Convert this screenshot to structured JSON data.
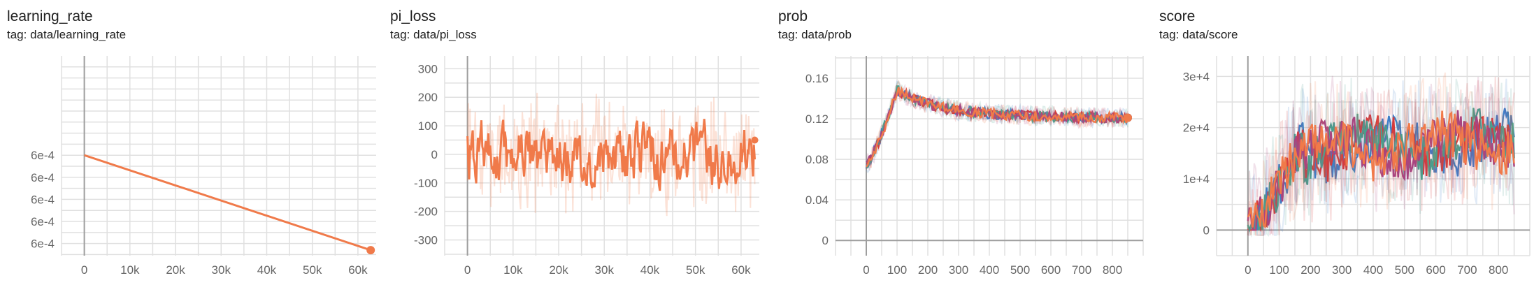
{
  "chart_data": [
    {
      "type": "line",
      "title": "learning_rate",
      "subtitle": "tag: data/learning_rate",
      "x_ticks": [
        "0",
        "10k",
        "20k",
        "30k",
        "40k",
        "50k",
        "60k"
      ],
      "x_tick_values": [
        0,
        10000,
        20000,
        30000,
        40000,
        50000,
        60000
      ],
      "y_ticks": [
        "6e-4",
        "6e-4",
        "6e-4",
        "6e-4",
        "6e-4"
      ],
      "y_tick_values": [
        0.0006,
        0.000599,
        0.000598,
        0.000597,
        0.000596
      ],
      "xlim": [
        -5000,
        64000
      ],
      "ylim": [
        0.00059545,
        0.0006045
      ],
      "grid": true,
      "series": [
        {
          "color": "#f07a4a",
          "x": [
            0,
            62800
          ],
          "y": [
            0.0006,
            0.0005957
          ],
          "end_marker": true
        }
      ]
    },
    {
      "type": "line",
      "title": "pi_loss",
      "subtitle": "tag: data/pi_loss",
      "x_ticks": [
        "0",
        "10k",
        "20k",
        "30k",
        "40k",
        "50k",
        "60k"
      ],
      "x_tick_values": [
        0,
        10000,
        20000,
        30000,
        40000,
        50000,
        60000
      ],
      "y_ticks": [
        "300",
        "200",
        "100",
        "0",
        "-100",
        "-200",
        "-300"
      ],
      "y_tick_values": [
        300,
        200,
        100,
        0,
        -100,
        -200,
        -300
      ],
      "xlim": [
        -5000,
        64000
      ],
      "ylim": [
        -355,
        345
      ],
      "grid": true,
      "noisy": {
        "x_start": 0,
        "x_end": 63000,
        "points": 330,
        "center": 0,
        "amp": 95,
        "raw_amp": 230,
        "seed": 7
      },
      "series": [
        {
          "color": "#f07a4a"
        }
      ]
    },
    {
      "type": "line",
      "title": "prob",
      "subtitle": "tag: data/prob",
      "x_ticks": [
        "0",
        "100",
        "200",
        "300",
        "400",
        "500",
        "600",
        "700",
        "800"
      ],
      "x_tick_values": [
        0,
        100,
        200,
        300,
        400,
        500,
        600,
        700,
        800
      ],
      "y_ticks": [
        "0.16",
        "0.12",
        "0.08",
        "0.04",
        "0"
      ],
      "y_tick_values": [
        0.16,
        0.12,
        0.08,
        0.04,
        0
      ],
      "xlim": [
        -100,
        900
      ],
      "ylim": [
        -0.015,
        0.182
      ],
      "grid": true,
      "series": [
        {
          "color": "#3f7fc8"
        },
        {
          "color": "#d63b3b"
        },
        {
          "color": "#4a9e8c"
        },
        {
          "color": "#a8447f"
        },
        {
          "color": "#f07a4a"
        }
      ]
    },
    {
      "type": "line",
      "title": "score",
      "subtitle": "tag: data/score",
      "x_ticks": [
        "0",
        "100",
        "200",
        "300",
        "400",
        "500",
        "600",
        "700",
        "800"
      ],
      "x_tick_values": [
        0,
        100,
        200,
        300,
        400,
        500,
        600,
        700,
        800
      ],
      "y_ticks": [
        "3e+4",
        "2e+4",
        "1e+4",
        "0"
      ],
      "y_tick_values": [
        30000,
        20000,
        10000,
        0
      ],
      "xlim": [
        -100,
        900
      ],
      "ylim": [
        -5000,
        34000
      ],
      "grid": true,
      "series": [
        {
          "color": "#3f7fc8"
        },
        {
          "color": "#d63b3b"
        },
        {
          "color": "#4a9e8c"
        },
        {
          "color": "#a8447f"
        },
        {
          "color": "#f07a4a"
        }
      ]
    }
  ]
}
